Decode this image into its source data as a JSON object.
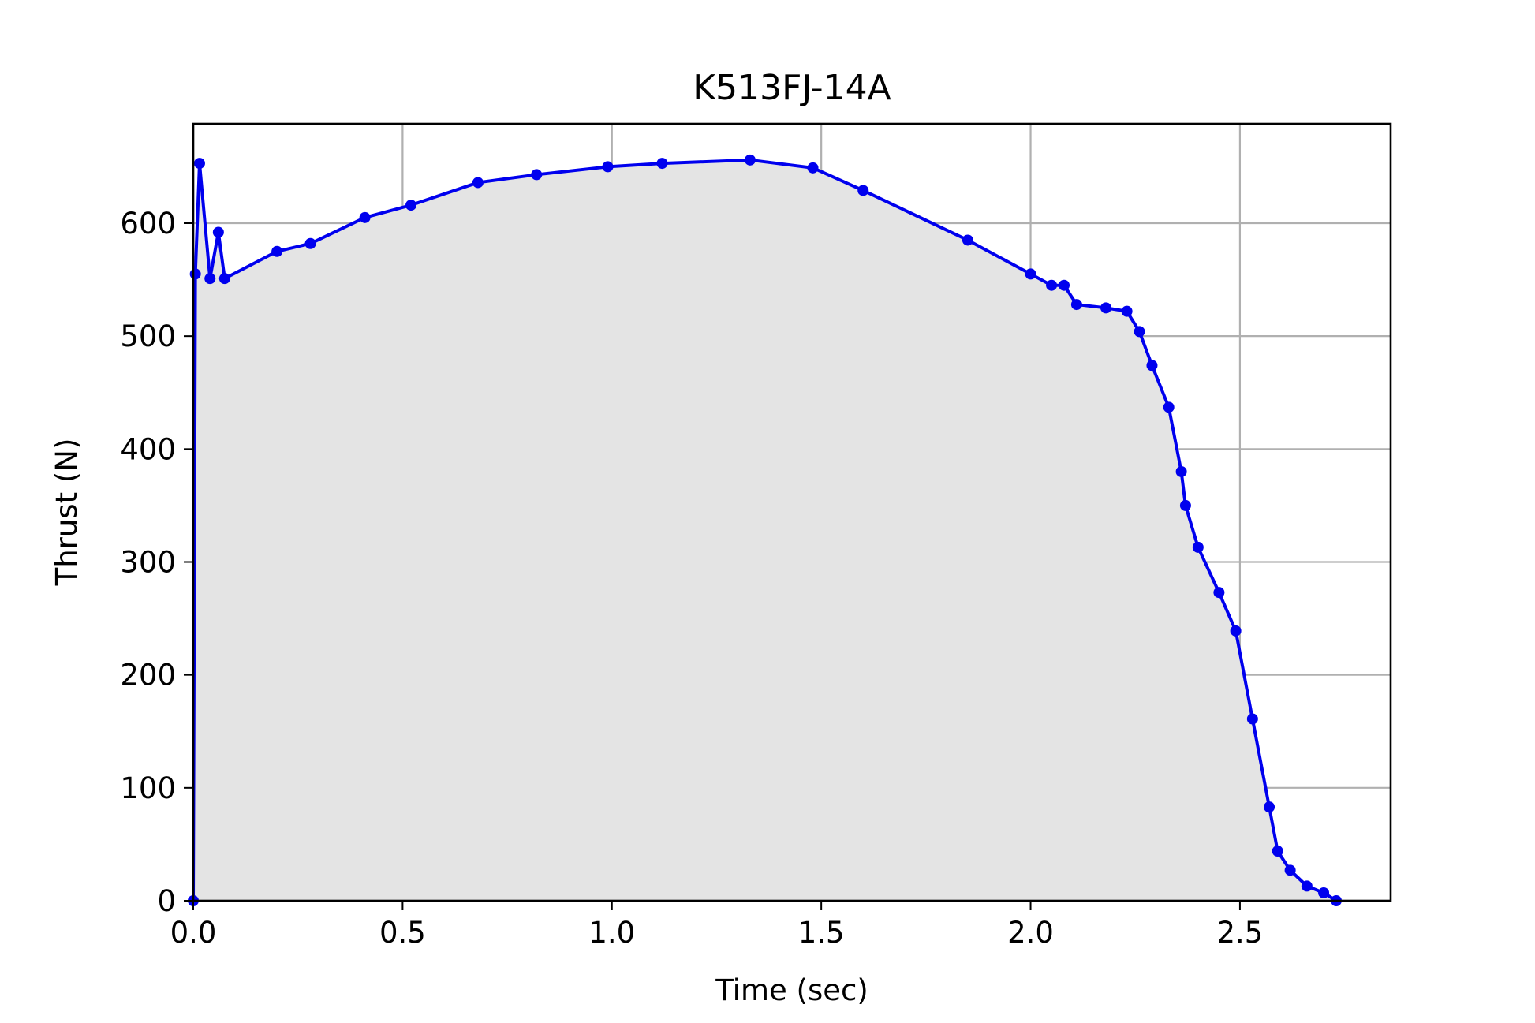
{
  "chart_data": {
    "type": "line",
    "title": "K513FJ-14A",
    "xlabel": "Time (sec)",
    "ylabel": "Thrust (N)",
    "xlim": [
      0,
      2.86
    ],
    "ylim": [
      0,
      688
    ],
    "xticks": [
      0.0,
      0.5,
      1.0,
      1.5,
      2.0,
      2.5
    ],
    "xtick_labels": [
      "0.0",
      "0.5",
      "1.0",
      "1.5",
      "2.0",
      "2.5"
    ],
    "yticks": [
      0,
      100,
      200,
      300,
      400,
      500,
      600
    ],
    "ytick_labels": [
      "0",
      "100",
      "200",
      "300",
      "400",
      "500",
      "600"
    ],
    "grid": true,
    "fill_under": true,
    "series": [
      {
        "color": "#0000ee",
        "fill_color": "#e4e4e4",
        "marker": "circle",
        "points": [
          [
            0.0,
            0
          ],
          [
            0.005,
            555
          ],
          [
            0.015,
            653
          ],
          [
            0.04,
            551
          ],
          [
            0.06,
            592
          ],
          [
            0.075,
            551
          ],
          [
            0.2,
            575
          ],
          [
            0.28,
            582
          ],
          [
            0.41,
            605
          ],
          [
            0.52,
            616
          ],
          [
            0.68,
            636
          ],
          [
            0.82,
            643
          ],
          [
            0.99,
            650
          ],
          [
            1.12,
            653
          ],
          [
            1.33,
            656
          ],
          [
            1.48,
            649
          ],
          [
            1.6,
            629
          ],
          [
            1.85,
            585
          ],
          [
            2.0,
            555
          ],
          [
            2.05,
            545
          ],
          [
            2.08,
            545
          ],
          [
            2.11,
            528
          ],
          [
            2.18,
            525
          ],
          [
            2.23,
            522
          ],
          [
            2.26,
            504
          ],
          [
            2.29,
            474
          ],
          [
            2.33,
            437
          ],
          [
            2.36,
            380
          ],
          [
            2.37,
            350
          ],
          [
            2.4,
            313
          ],
          [
            2.45,
            273
          ],
          [
            2.49,
            239
          ],
          [
            2.53,
            161
          ],
          [
            2.57,
            83
          ],
          [
            2.59,
            44
          ],
          [
            2.62,
            27
          ],
          [
            2.66,
            13
          ],
          [
            2.7,
            7
          ],
          [
            2.73,
            0
          ]
        ]
      }
    ]
  }
}
